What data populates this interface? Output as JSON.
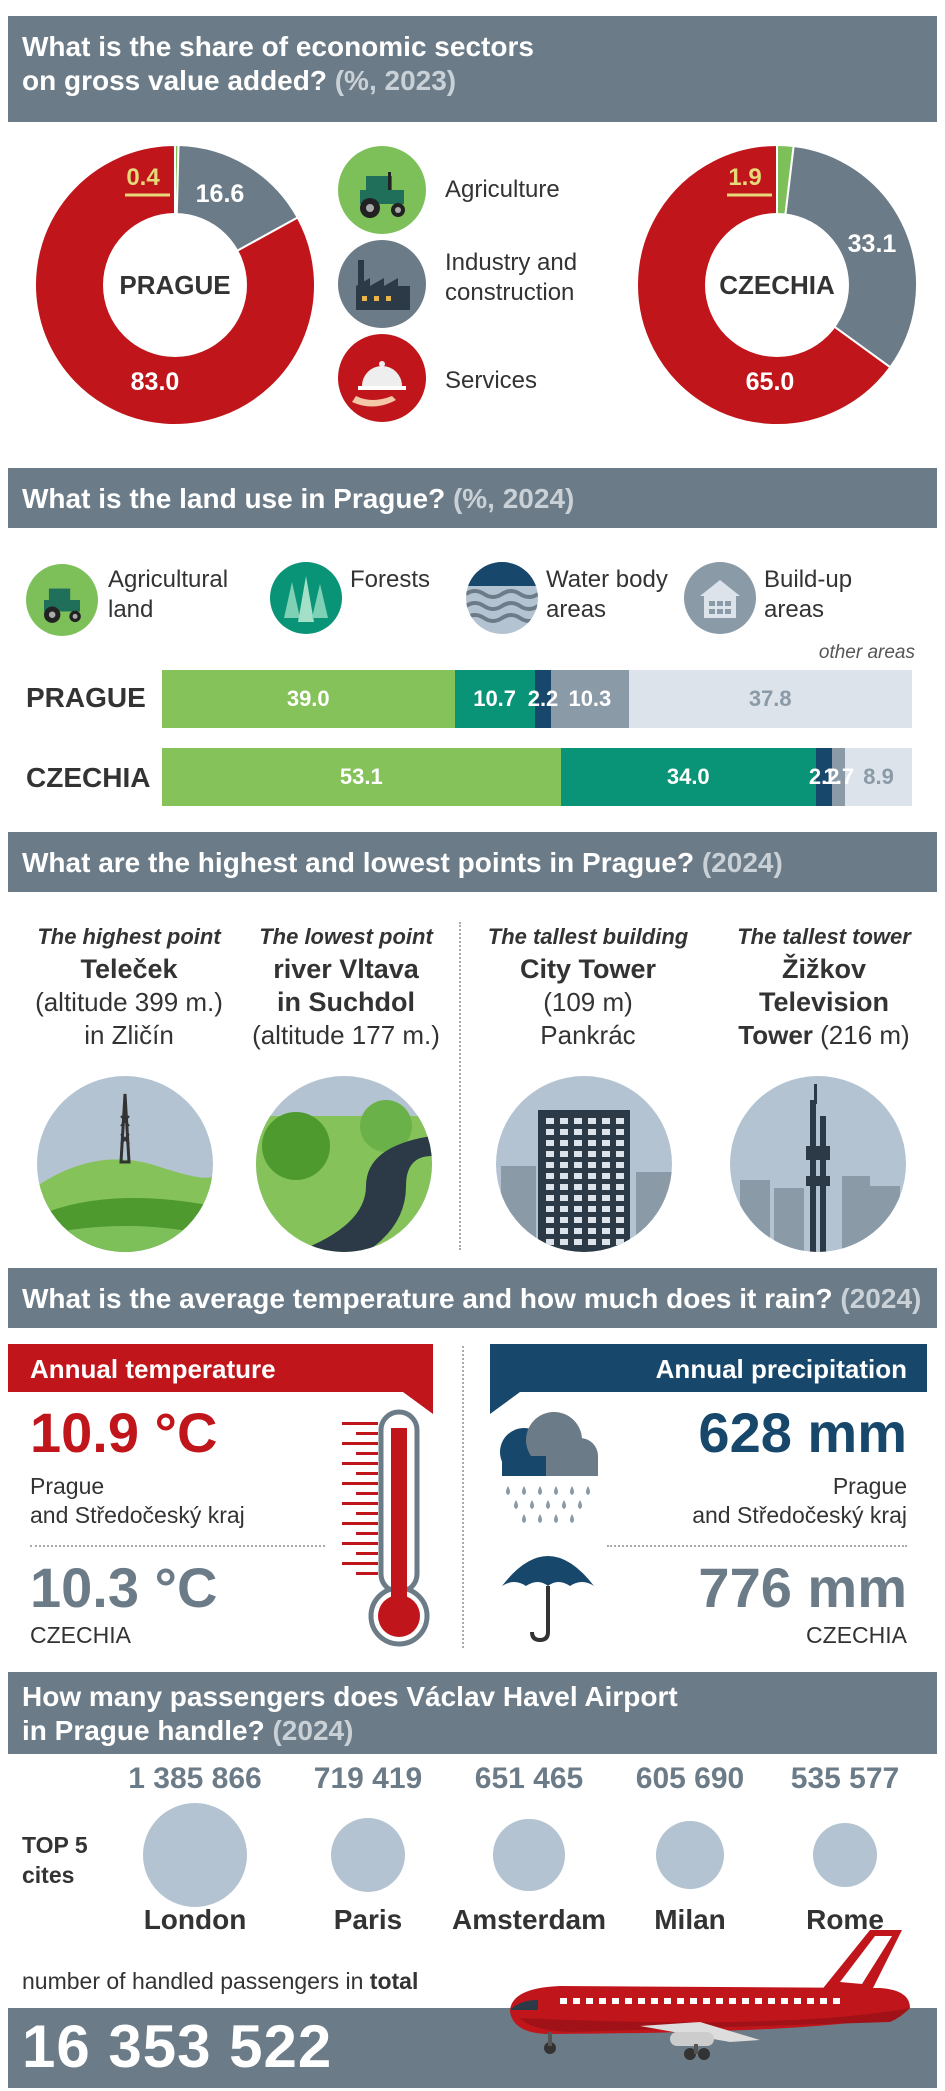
{
  "sections": {
    "gva": {
      "title_line1": "What is the share of economic sectors",
      "title_line2": "on gross value added?",
      "title_unit": "(%, 2023)"
    },
    "land": {
      "title": "What is the land use in Prague?",
      "title_unit": "(%, 2024)"
    },
    "points": {
      "title": "What are the highest and lowest points in Prague?",
      "title_unit": "(2024)"
    },
    "weather": {
      "title": "What is the average temperature and how much does it rain?",
      "title_unit": "(2024)"
    },
    "airport": {
      "title_line1": "How many passengers does Václav Havel Airport",
      "title_line2": "in Prague handle?",
      "title_unit": "(2024)"
    }
  },
  "gva": {
    "prague": {
      "label": "PRAGUE",
      "agriculture": "0.4",
      "industry": "16.6",
      "services": "83.0"
    },
    "czechia": {
      "label": "CZECHIA",
      "agriculture": "1.9",
      "industry": "33.1",
      "services": "65.0"
    },
    "legend": {
      "agriculture": "Agriculture",
      "industry_line1": "Industry and",
      "industry_line2": "construction",
      "services": "Services"
    },
    "colors": {
      "agriculture": "#7dc05a",
      "industry": "#6b7b87",
      "services": "#c0161b"
    }
  },
  "land": {
    "legend": {
      "agri_line1": "Agricultural",
      "agri_line2": "land",
      "forests": "Forests",
      "water_line1": "Water body",
      "water_line2": "areas",
      "built_line1": "Build-up",
      "built_line2": "areas"
    },
    "other_label": "other areas",
    "prague": {
      "label": "PRAGUE",
      "agri": "39.0",
      "forest": "10.7",
      "water": "2.2",
      "built": "10.3",
      "other": "37.8"
    },
    "czechia": {
      "label": "CZECHIA",
      "agri": "53.1",
      "forest": "34.0",
      "water": "2.2",
      "built": "1.7",
      "other": "8.9"
    },
    "colors": {
      "agri": "#86c25a",
      "forest": "#0a9477",
      "water": "#17476b",
      "built": "#8a9aa7",
      "other": "#dde3ea"
    }
  },
  "points": {
    "highest": {
      "heading": "The highest point",
      "name": "Teleček",
      "line2": "(altitude 399 m.)",
      "line3": "in Zličín"
    },
    "lowest": {
      "heading": "The lowest point",
      "name_line1": "river Vltava",
      "name_line2": "in Suchdol",
      "line3": "(altitude 177 m.)"
    },
    "building": {
      "heading": "The tallest building",
      "name": "City Tower",
      "line2": "(109 m)",
      "line3": "Pankrác"
    },
    "tower": {
      "heading": "The tallest tower",
      "name_line1": "Žižkov",
      "name_line2": "Television",
      "name_line3": "Tower",
      "height": "(216 m)"
    }
  },
  "weather": {
    "temp": {
      "heading": "Annual temperature",
      "prague_value": "10.9 °C",
      "prague_label_line1": "Prague",
      "prague_label_line2": "and Středočeský kraj",
      "czechia_value": "10.3 °C",
      "czechia_label": "CZECHIA"
    },
    "precip": {
      "heading": "Annual precipitation",
      "prague_value": "628 mm",
      "prague_label_line1": "Prague",
      "prague_label_line2": "and Středočeský kraj",
      "czechia_value": "776 mm",
      "czechia_label": "CZECHIA"
    },
    "colors": {
      "temp": "#c0161b",
      "precip": "#17476b",
      "muted": "#6b7b87"
    }
  },
  "airport": {
    "top_label_line1": "TOP 5",
    "top_label_line2": "cites",
    "cities": [
      {
        "name": "London",
        "passengers": "1 385 866",
        "value": 1385866
      },
      {
        "name": "Paris",
        "passengers": "719 419",
        "value": 719419
      },
      {
        "name": "Amsterdam",
        "passengers": "651 465",
        "value": 651465
      },
      {
        "name": "Milan",
        "passengers": "605 690",
        "value": 605690
      },
      {
        "name": "Rome",
        "passengers": "535 577",
        "value": 535577
      }
    ],
    "total_label_prefix": "number of handled passengers in",
    "total_label_bold": "total",
    "total": "16 353 522"
  }
}
